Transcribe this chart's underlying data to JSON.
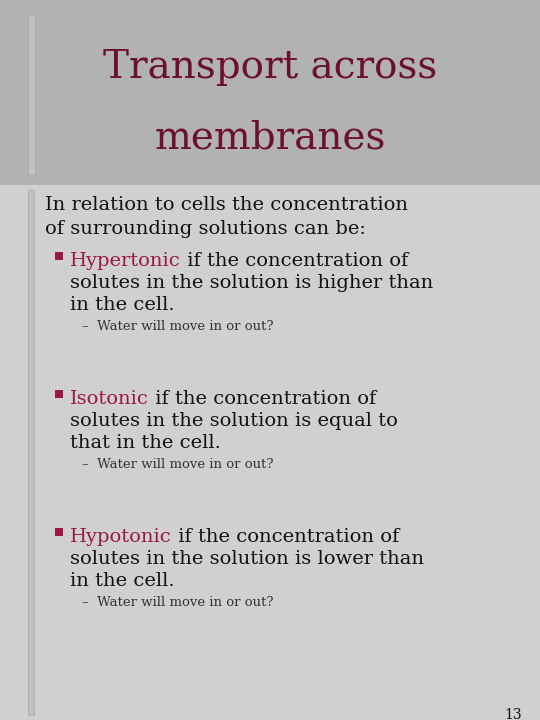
{
  "bg_color": "#b2b2b2",
  "title_bg": "#b2b2b2",
  "content_bg": "#d0d0d0",
  "title_color": "#6b1030",
  "title_line1": "Transport across",
  "title_line2": "membranes",
  "intro_color": "#111111",
  "keyword_color": "#9b1840",
  "body_color": "#111111",
  "sub_color": "#333333",
  "bullet_color": "#9b1840",
  "left_bar_color": "#c0c0c0",
  "left_bar_dark": "#a8a8a8",
  "items": [
    {
      "keyword": "Hypertonic",
      "rest_line1": " if the concentration of",
      "line2": "solutes in the solution is higher than",
      "line3": "in the cell.",
      "sub": "–  Water will move in or out?"
    },
    {
      "keyword": "Isotonic",
      "rest_line1": " if the concentration of",
      "line2": "solutes in the solution is equal to",
      "line3": "that in the cell.",
      "sub": "–  Water will move in or out?"
    },
    {
      "keyword": "Hypotonic",
      "rest_line1": " if the concentration of",
      "line2": "solutes in the solution is lower than",
      "line3": "in the cell.",
      "sub": "–  Water will move in or out?"
    }
  ],
  "page_number": "13",
  "title_fontsize": 28,
  "intro_fontsize": 14,
  "bullet_fontsize": 14,
  "sub_fontsize": 9.5
}
